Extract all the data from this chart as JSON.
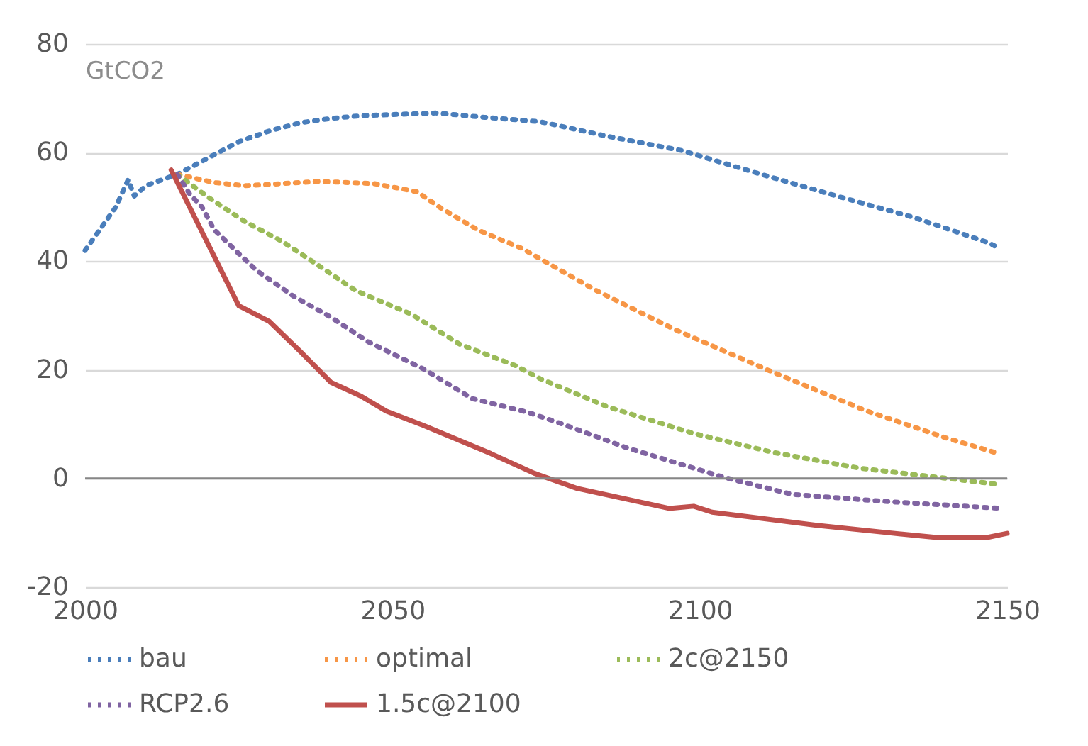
{
  "chart_data": {
    "type": "line",
    "ylabel": "GtCO2",
    "xlim": [
      2000,
      2150
    ],
    "xticks": [
      2000,
      2050,
      2100,
      2150
    ],
    "ylim": [
      -20,
      80
    ],
    "yticks": [
      -20,
      0,
      20,
      40,
      60,
      80
    ],
    "grid": "y",
    "legend": "bottom",
    "marker": "none",
    "ref_lines": [
      {
        "axis": "y",
        "value": 0,
        "color": "#868686"
      }
    ],
    "series": [
      {
        "name": "bau",
        "color": "#4a7ebb",
        "line_style": "dotted",
        "x": [
          2000,
          2005,
          2007,
          2008,
          2010,
          2015,
          2020,
          2025,
          2030,
          2035,
          2040,
          2045,
          2050,
          2057,
          2065,
          2074,
          2085,
          2097,
          2110,
          2122,
          2135,
          2147,
          2148
        ],
        "values": [
          42,
          50,
          55,
          52,
          54,
          56,
          59,
          62,
          64,
          65.5,
          66.3,
          66.8,
          67,
          67.3,
          66.5,
          65.7,
          63,
          60.4,
          56,
          52.1,
          48,
          43.4,
          42.8
        ]
      },
      {
        "name": "optimal",
        "color": "#f79646",
        "line_style": "dotted",
        "x": [
          2015,
          2021,
          2026,
          2038,
          2047,
          2054,
          2058,
          2064,
          2071,
          2083,
          2096,
          2111,
          2127,
          2140,
          2148
        ],
        "values": [
          56,
          54.5,
          53.9,
          54.7,
          54.3,
          52.8,
          49.7,
          45.7,
          42.4,
          34.7,
          27.4,
          20,
          12.5,
          7.5,
          4.8
        ]
      },
      {
        "name": "2c@2150",
        "color": "#9bbb59",
        "line_style": "dotted",
        "x": [
          2015,
          2020,
          2026,
          2032,
          2038,
          2044,
          2053,
          2061,
          2070,
          2074,
          2085,
          2099,
          2112,
          2126,
          2148
        ],
        "values": [
          56,
          51.8,
          47.3,
          43.7,
          39.2,
          34.6,
          30.3,
          24.7,
          20.8,
          18.4,
          13.2,
          8.3,
          4.8,
          1.9,
          -1
        ]
      },
      {
        "name": "RCP2.6",
        "color": "#8064a2",
        "line_style": "dotted",
        "x": [
          2015,
          2017,
          2019,
          2021,
          2025,
          2028,
          2034,
          2040,
          2046,
          2055,
          2063,
          2072,
          2077,
          2088,
          2104,
          2115,
          2130,
          2149
        ],
        "values": [
          56,
          52.4,
          50,
          45.8,
          41.4,
          38.2,
          33.5,
          29.7,
          25.2,
          20.2,
          14.7,
          12.2,
          10.3,
          5.7,
          0.2,
          -2.9,
          -4.2,
          -5.5
        ]
      },
      {
        "name": "1.5c@2100",
        "color": "#c0504d",
        "line_style": "solid",
        "x": [
          2014,
          2025,
          2030,
          2035,
          2040,
          2045,
          2049,
          2055,
          2066,
          2073,
          2080,
          2095,
          2099,
          2102,
          2119,
          2130,
          2138,
          2147,
          2150
        ],
        "values": [
          56.8,
          31.8,
          28.9,
          23.4,
          17.7,
          15.1,
          12.4,
          9.8,
          4.6,
          1,
          -1.8,
          -5.5,
          -5.1,
          -6.2,
          -8.6,
          -9.9,
          -10.8,
          -10.8,
          -10.1
        ]
      }
    ]
  }
}
